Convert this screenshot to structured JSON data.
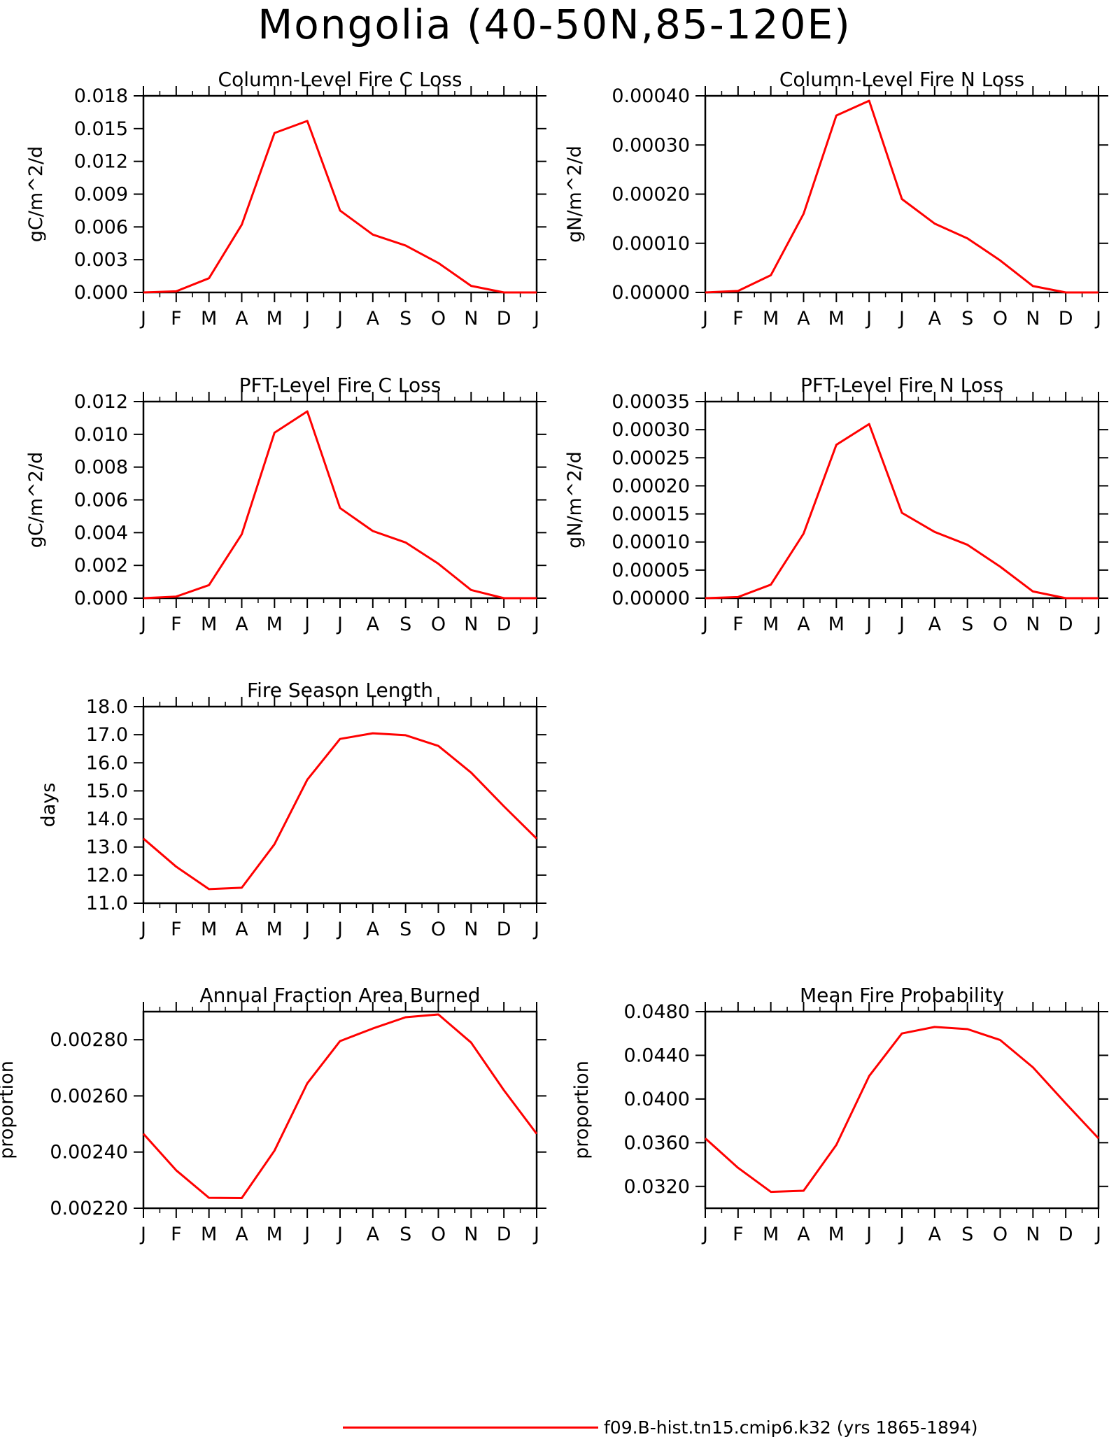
{
  "title": "Mongolia (40-50N,85-120E)",
  "series_color": "#ff0000",
  "legend": {
    "label": "f09.B-hist.tn15.cmip6.k32 (yrs 1865-1894)"
  },
  "chart_data": [
    {
      "id": "col-c-loss",
      "type": "line",
      "title": "Column-Level Fire C Loss",
      "ylabel": "gC/m^2/d",
      "ylim": [
        0,
        0.018
      ],
      "yticks": [
        "0.000",
        "0.003",
        "0.006",
        "0.009",
        "0.012",
        "0.015",
        "0.018"
      ],
      "categories": [
        "J",
        "F",
        "M",
        "A",
        "M",
        "J",
        "J",
        "A",
        "S",
        "O",
        "N",
        "D",
        "J"
      ],
      "series": [
        {
          "values": [
            0.0,
            0.0001,
            0.0013,
            0.0062,
            0.0146,
            0.0157,
            0.0075,
            0.0053,
            0.0043,
            0.0027,
            0.0006,
            0.0,
            0.0
          ]
        }
      ]
    },
    {
      "id": "col-n-loss",
      "type": "line",
      "title": "Column-Level Fire N Loss",
      "ylabel": "gN/m^2/d",
      "ylim": [
        0,
        0.0004
      ],
      "yticks": [
        "0.00000",
        "0.00010",
        "0.00020",
        "0.00030",
        "0.00040"
      ],
      "categories": [
        "J",
        "F",
        "M",
        "A",
        "M",
        "J",
        "J",
        "A",
        "S",
        "O",
        "N",
        "D",
        "J"
      ],
      "series": [
        {
          "values": [
            0.0,
            3e-06,
            3.5e-05,
            0.00016,
            0.00036,
            0.00039,
            0.00019,
            0.00014,
            0.00011,
            6.5e-05,
            1.3e-05,
            0.0,
            0.0
          ]
        }
      ]
    },
    {
      "id": "pft-c-loss",
      "type": "line",
      "title": "PFT-Level Fire C Loss",
      "ylabel": "gC/m^2/d",
      "ylim": [
        0,
        0.012
      ],
      "yticks": [
        "0.000",
        "0.002",
        "0.004",
        "0.006",
        "0.008",
        "0.010",
        "0.012"
      ],
      "categories": [
        "J",
        "F",
        "M",
        "A",
        "M",
        "J",
        "J",
        "A",
        "S",
        "O",
        "N",
        "D",
        "J"
      ],
      "series": [
        {
          "values": [
            0.0,
            0.0001,
            0.0008,
            0.0039,
            0.0101,
            0.0114,
            0.0055,
            0.0041,
            0.0034,
            0.0021,
            0.0005,
            0.0,
            0.0
          ]
        }
      ]
    },
    {
      "id": "pft-n-loss",
      "type": "line",
      "title": "PFT-Level Fire N Loss",
      "ylabel": "gN/m^2/d",
      "ylim": [
        0,
        0.00035
      ],
      "yticks": [
        "0.00000",
        "0.00005",
        "0.00010",
        "0.00015",
        "0.00020",
        "0.00025",
        "0.00030",
        "0.00035"
      ],
      "categories": [
        "J",
        "F",
        "M",
        "A",
        "M",
        "J",
        "J",
        "A",
        "S",
        "O",
        "N",
        "D",
        "J"
      ],
      "series": [
        {
          "values": [
            0.0,
            2e-06,
            2.4e-05,
            0.000115,
            0.000273,
            0.00031,
            0.000152,
            0.000118,
            9.5e-05,
            5.6e-05,
            1.2e-05,
            0.0,
            0.0
          ]
        }
      ]
    },
    {
      "id": "fire-season",
      "type": "line",
      "title": "Fire Season Length",
      "ylabel": "days",
      "ylim": [
        11.0,
        18.0
      ],
      "yticks": [
        "11.0",
        "12.0",
        "13.0",
        "14.0",
        "15.0",
        "16.0",
        "17.0",
        "18.0"
      ],
      "categories": [
        "J",
        "F",
        "M",
        "A",
        "M",
        "J",
        "J",
        "A",
        "S",
        "O",
        "N",
        "D",
        "J"
      ],
      "series": [
        {
          "values": [
            13.3,
            12.3,
            11.5,
            11.55,
            13.1,
            15.4,
            16.85,
            17.05,
            16.98,
            16.6,
            15.65,
            14.45,
            13.3
          ]
        }
      ]
    },
    {
      "id": "frac-burned",
      "type": "line",
      "title": "Annual Fraction Area Burned",
      "ylabel": "proportion",
      "ylim": [
        0.0022,
        0.0029
      ],
      "yticks": [
        "0.00220",
        "0.00240",
        "0.00260",
        "0.00280"
      ],
      "categories": [
        "J",
        "F",
        "M",
        "A",
        "M",
        "J",
        "J",
        "A",
        "S",
        "O",
        "N",
        "D",
        "J"
      ],
      "series": [
        {
          "values": [
            0.002465,
            0.002335,
            0.002237,
            0.002236,
            0.002405,
            0.002645,
            0.002795,
            0.00284,
            0.00288,
            0.00289,
            0.00279,
            0.00262,
            0.002465
          ]
        }
      ]
    },
    {
      "id": "fire-prob",
      "type": "line",
      "title": "Mean Fire Probability",
      "ylabel": "proportion",
      "ylim": [
        0.03,
        0.048
      ],
      "yticks": [
        "0.0320",
        "0.0360",
        "0.0400",
        "0.0440",
        "0.0480"
      ],
      "categories": [
        "J",
        "F",
        "M",
        "A",
        "M",
        "J",
        "J",
        "A",
        "S",
        "O",
        "N",
        "D",
        "J"
      ],
      "series": [
        {
          "values": [
            0.0364,
            0.0337,
            0.0315,
            0.0316,
            0.0358,
            0.0421,
            0.046,
            0.0466,
            0.0464,
            0.0454,
            0.0429,
            0.0396,
            0.0364
          ]
        }
      ]
    }
  ]
}
